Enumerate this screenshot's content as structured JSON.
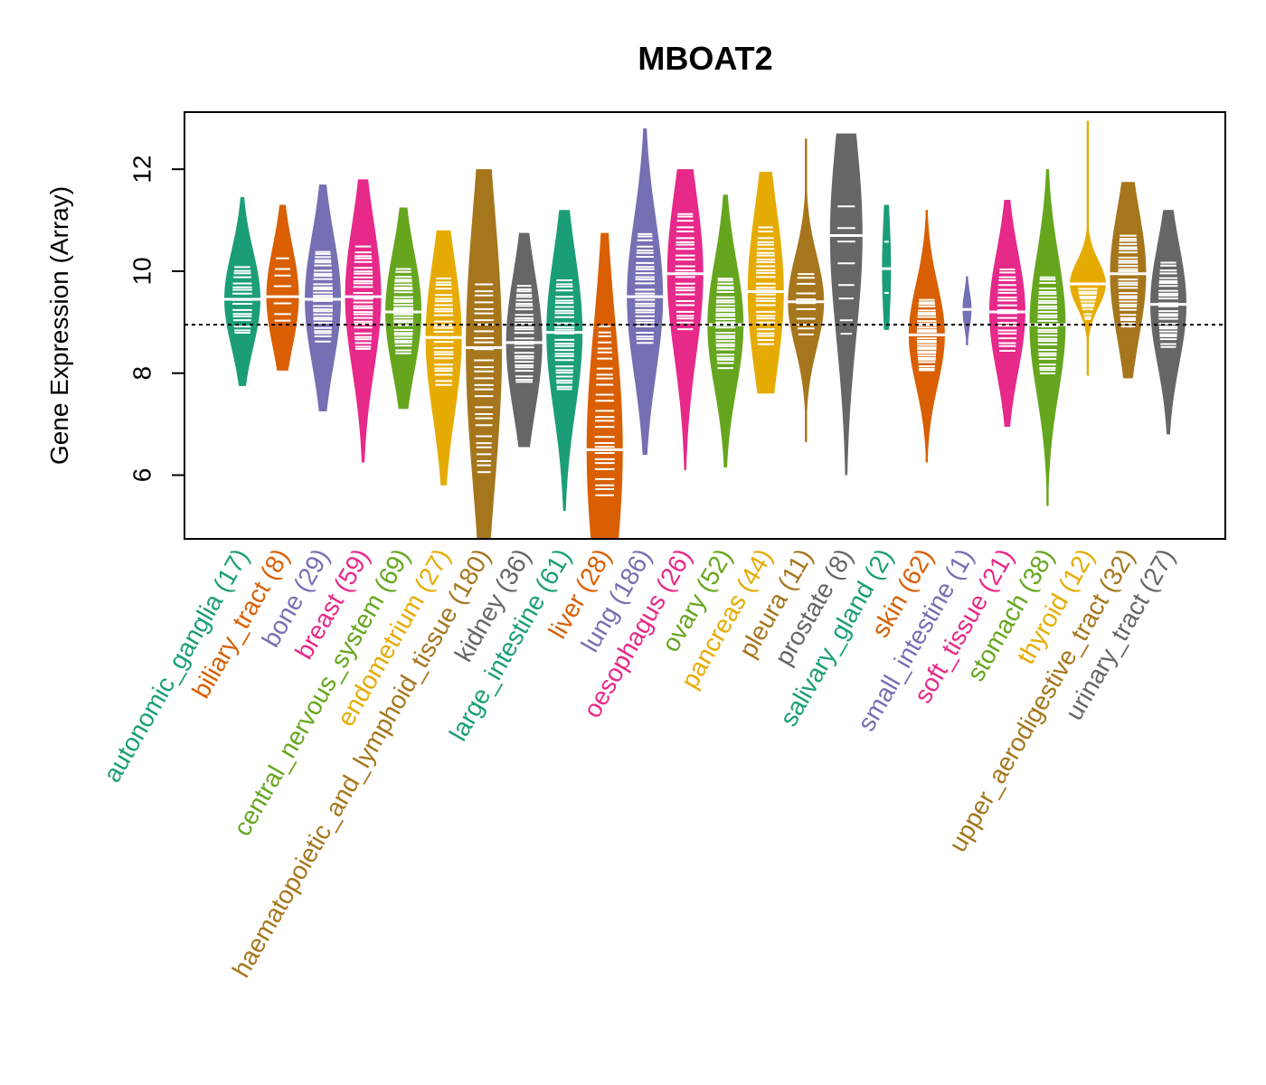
{
  "chart_data": {
    "type": "violin",
    "title": "MBOAT2",
    "xlabel": "",
    "ylabel": "Gene Expression (Array)",
    "ylim": [
      4.75,
      13.12
    ],
    "yticks": [
      6,
      8,
      10,
      12
    ],
    "ytick_labels": [
      "6",
      "8",
      "10",
      "12"
    ],
    "reference_line": 8.95,
    "grid": false,
    "legend": "none",
    "categories": [
      {
        "name": "autonomic_ganglia",
        "n": 17,
        "label": "autonomic_ganglia (17)",
        "color": "#1B9E77",
        "median": 9.45,
        "min": 7.75,
        "max": 11.45,
        "q1": 8.95,
        "q3": 10.0
      },
      {
        "name": "biliary_tract",
        "n": 8,
        "label": "biliary_tract (8)",
        "color": "#D95F02",
        "median": 9.5,
        "min": 8.05,
        "max": 11.3,
        "q1": 9.0,
        "q3": 10.1
      },
      {
        "name": "bone",
        "n": 29,
        "label": "bone (29)",
        "color": "#7570B3",
        "median": 9.45,
        "min": 7.25,
        "max": 11.7,
        "q1": 8.8,
        "q3": 10.2
      },
      {
        "name": "breast",
        "n": 59,
        "label": "breast (59)",
        "color": "#E7298A",
        "median": 9.5,
        "min": 6.25,
        "max": 11.8,
        "q1": 8.7,
        "q3": 10.3
      },
      {
        "name": "central_nervous_system",
        "n": 69,
        "label": "central_nervous_system (69)",
        "color": "#66A61E",
        "median": 9.2,
        "min": 7.3,
        "max": 11.25,
        "q1": 8.55,
        "q3": 9.85
      },
      {
        "name": "endometrium",
        "n": 27,
        "label": "endometrium (27)",
        "color": "#E6AB02",
        "median": 8.7,
        "min": 5.8,
        "max": 10.8,
        "q1": 8.0,
        "q3": 9.7
      },
      {
        "name": "haematopoietic_and_lymphoid_tissue",
        "n": 180,
        "label": "haematopoietic_and_lymphoid_tissue (180)",
        "color": "#A6761D",
        "median": 8.5,
        "min": 4.75,
        "max": 12.0,
        "q1": 6.5,
        "q3": 9.5
      },
      {
        "name": "kidney",
        "n": 36,
        "label": "kidney (36)",
        "color": "#666666",
        "median": 8.6,
        "min": 6.55,
        "max": 10.75,
        "q1": 8.0,
        "q3": 9.5
      },
      {
        "name": "large_intestine",
        "n": 61,
        "label": "large_intestine (61)",
        "color": "#1B9E77",
        "median": 8.8,
        "min": 5.3,
        "max": 11.2,
        "q1": 7.9,
        "q3": 9.6
      },
      {
        "name": "liver",
        "n": 28,
        "label": "liver (28)",
        "color": "#D95F02",
        "median": 6.5,
        "min": 4.75,
        "max": 10.75,
        "q1": 5.9,
        "q3": 8.6
      },
      {
        "name": "lung",
        "n": 186,
        "label": "lung (186)",
        "color": "#7570B3",
        "median": 9.5,
        "min": 6.4,
        "max": 12.8,
        "q1": 8.8,
        "q3": 10.5
      },
      {
        "name": "oesophagus",
        "n": 26,
        "label": "oesophagus (26)",
        "color": "#E7298A",
        "median": 9.95,
        "min": 6.1,
        "max": 12.0,
        "q1": 9.1,
        "q3": 10.9
      },
      {
        "name": "ovary",
        "n": 52,
        "label": "ovary (52)",
        "color": "#66A61E",
        "median": 8.95,
        "min": 6.15,
        "max": 11.5,
        "q1": 8.3,
        "q3": 9.7
      },
      {
        "name": "pancreas",
        "n": 44,
        "label": "pancreas (44)",
        "color": "#E6AB02",
        "median": 9.6,
        "min": 7.6,
        "max": 11.95,
        "q1": 8.8,
        "q3": 10.6
      },
      {
        "name": "pleura",
        "n": 11,
        "label": "pleura (11)",
        "color": "#A6761D",
        "median": 9.4,
        "min": 6.65,
        "max": 12.6,
        "q1": 8.9,
        "q3": 9.9
      },
      {
        "name": "prostate",
        "n": 8,
        "label": "prostate (8)",
        "color": "#666666",
        "median": 10.7,
        "min": 6.0,
        "max": 12.7,
        "q1": 8.95,
        "q3": 11.2
      },
      {
        "name": "salivary_gland",
        "n": 2,
        "label": "salivary_gland (2)",
        "color": "#1B9E77",
        "median": 10.05,
        "min": 8.85,
        "max": 11.3,
        "q1": 9.45,
        "q3": 10.7
      },
      {
        "name": "skin",
        "n": 62,
        "label": "skin (62)",
        "color": "#D95F02",
        "median": 8.75,
        "min": 6.25,
        "max": 11.2,
        "q1": 8.2,
        "q3": 9.3
      },
      {
        "name": "small_intestine",
        "n": 1,
        "label": "small_intestine (1)",
        "color": "#7570B3",
        "median": 9.25,
        "min": 8.55,
        "max": 9.9,
        "q1": 9.25,
        "q3": 9.25
      },
      {
        "name": "soft_tissue",
        "n": 21,
        "label": "soft_tissue (21)",
        "color": "#E7298A",
        "median": 9.2,
        "min": 6.95,
        "max": 11.4,
        "q1": 8.6,
        "q3": 9.9
      },
      {
        "name": "stomach",
        "n": 38,
        "label": "stomach (38)",
        "color": "#66A61E",
        "median": 8.95,
        "min": 5.4,
        "max": 12.0,
        "q1": 8.2,
        "q3": 9.7
      },
      {
        "name": "thyroid",
        "n": 12,
        "label": "thyroid (12)",
        "color": "#E6AB02",
        "median": 9.75,
        "min": 7.95,
        "max": 12.95,
        "q1": 9.1,
        "q3": 9.6
      },
      {
        "name": "upper_aerodigestive_tract",
        "n": 32,
        "label": "upper_aerodigestive_tract (32)",
        "color": "#A6761D",
        "median": 9.95,
        "min": 7.9,
        "max": 11.75,
        "q1": 9.1,
        "q3": 10.5
      },
      {
        "name": "urinary_tract",
        "n": 27,
        "label": "urinary_tract (27)",
        "color": "#666666",
        "median": 9.35,
        "min": 6.8,
        "max": 11.2,
        "q1": 8.7,
        "q3": 10.0
      }
    ]
  }
}
